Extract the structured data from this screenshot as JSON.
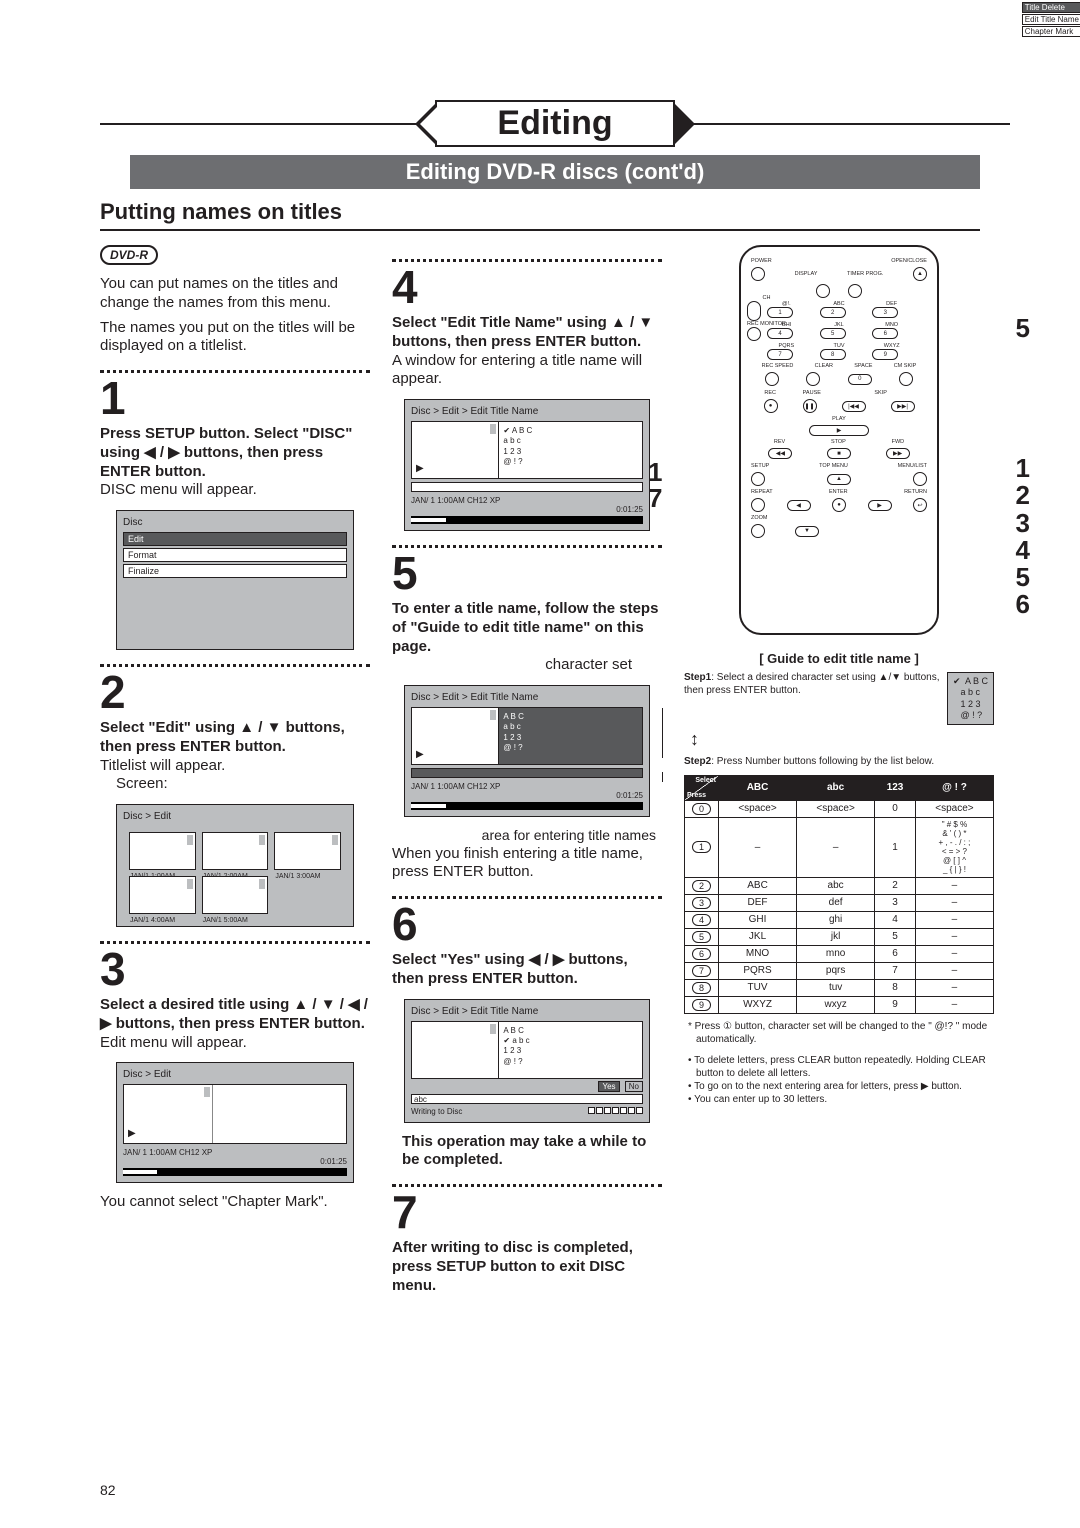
{
  "header": {
    "title": "Editing",
    "subtitle": "Editing DVD-R discs (cont'd)",
    "section": "Putting names on titles"
  },
  "badge": "DVD-R",
  "intro": {
    "p1": "You can put names on the titles and change the names from this menu.",
    "p2": "The names you put on the titles will be displayed on a titlelist."
  },
  "steps": {
    "s1": {
      "num": "1",
      "bold": "Press SETUP button. Select \"DISC\" using ◀ / ▶ buttons, then press ENTER button.",
      "plain": "DISC menu will appear.",
      "osd": {
        "crumb": "Disc",
        "items": [
          "Edit",
          "Format",
          "Finalize"
        ],
        "sel": 0
      }
    },
    "s2": {
      "num": "2",
      "bold": "Select \"Edit\" using ▲ / ▼ buttons, then press ENTER button.",
      "plain": "Titlelist will appear.",
      "screen_label": "Screen:",
      "osd": {
        "crumb": "Disc > Edit",
        "thumbs": [
          "JAN/1  1:00AM",
          "JAN/1  2:00AM",
          "JAN/1  3:00AM",
          "JAN/1  4:00AM",
          "JAN/1  5:00AM"
        ]
      }
    },
    "s3": {
      "num": "3",
      "bold": "Select a desired title using ▲ / ▼ / ◀ / ▶ buttons, then press ENTER button.",
      "plain": "Edit menu will appear.",
      "osd": {
        "crumb": "Disc > Edit",
        "menu": [
          "Title Delete",
          "Edit Title Name",
          "Chapter Mark"
        ],
        "status_l": "JAN/ 1   1:00AM  CH12    XP",
        "status_r": "0:01:25"
      },
      "note": "You cannot select \"Chapter Mark\"."
    },
    "s4": {
      "num": "4",
      "bold": "Select \"Edit Title Name\" using ▲ / ▼ buttons, then press ENTER button.",
      "plain": "A window for entering a title name will appear.",
      "osd": {
        "crumb": "Disc > Edit > Edit Title Name",
        "charsets": [
          "✔  A B C",
          "   a b c",
          "   1 2 3",
          "   @ ! ?"
        ],
        "status_l": "JAN/ 1   1:00AM  CH12   XP",
        "status_r": "0:01:25"
      }
    },
    "s5": {
      "num": "5",
      "bold": "To enter a title name, follow the steps of \"Guide to edit title name\" on this page.",
      "label_charset": "character set",
      "label_area": "area for entering title names",
      "plain": "When you finish entering a title name, press ENTER button.",
      "osd": {
        "crumb": "Disc > Edit > Edit Title Name",
        "charsets": [
          "   A B C",
          "   a b c",
          "   1 2 3",
          "   @ ! ?"
        ],
        "status_l": "JAN/ 1   1:00AM  CH12   XP",
        "status_r": "0:01:25"
      }
    },
    "s6": {
      "num": "6",
      "bold": "Select \"Yes\" using ◀ / ▶ buttons, then press ENTER button.",
      "osd": {
        "crumb": "Disc > Edit > Edit Title Name",
        "charsets": [
          "   A B C",
          "✔  a b c",
          "   1 2 3",
          "   @ ! ?"
        ],
        "yes": "Yes",
        "no": "No",
        "entered": "abc",
        "writing": "Writing to Disc"
      },
      "warn": "This operation may take a while to be completed."
    },
    "s7": {
      "num": "7",
      "bold": "After writing to disc is completed, press SETUP button to exit DISC menu."
    }
  },
  "remote": {
    "top_labels": [
      "POWER",
      "OPEN/CLOSE",
      "DISPLAY",
      "TIMER PROG."
    ],
    "num_labels": [
      "@!.",
      "ABC",
      "DEF",
      "GHI",
      "JKL",
      "MNO",
      "PQRS",
      "TUV",
      "WXYZ"
    ],
    "numbers": [
      "1",
      "2",
      "3",
      "4",
      "5",
      "6",
      "7",
      "8",
      "9"
    ],
    "side_l": [
      "CH",
      "REC MONITOR"
    ],
    "bot_row": [
      "REC SPEED",
      "CLEAR",
      "SPACE",
      "CM SKIP"
    ],
    "zero": "0",
    "rec": "REC",
    "pause": "PAUSE",
    "skip": "SKIP",
    "play": "PLAY",
    "rev": "REV",
    "stop": "STOP",
    "fwd": "FWD",
    "setup": "SETUP",
    "topmenu": "TOP MENU",
    "menulist": "MENU/LIST",
    "repeat": "REPEAT",
    "enter": "ENTER",
    "return": "RETURN",
    "zoom": "ZOOM",
    "ptr_left": [
      "1",
      "7"
    ],
    "ptr_right_top": "5",
    "ptr_right_stack": [
      "1",
      "2",
      "3",
      "4",
      "5",
      "6"
    ]
  },
  "guide": {
    "title": "[ Guide to edit title name ]",
    "step1": {
      "label": "Step1",
      "text": ": Select a desired character set using ▲/▼ buttons, then press ENTER button.",
      "charset": [
        "✔  A B C",
        "   a b c",
        "   1 2 3",
        "   @ ! ?"
      ]
    },
    "step2": {
      "label": "Step2",
      "text": ": Press Number buttons following by the list below."
    },
    "table": {
      "headers": [
        "ABC",
        "abc",
        "123",
        "@ ! ?"
      ],
      "diag_top": "Select",
      "diag_bot": "Press",
      "rows": [
        {
          "k": "0",
          "c": [
            "<space>",
            "<space>",
            "0",
            "<space>"
          ]
        },
        {
          "k": "1",
          "c": [
            "–",
            "–",
            "1",
            "\" # $ %\n& ' ( ) *\n+ , - . / : ;\n< = > ?\n@ [ ] ^\n_ { | } !"
          ]
        },
        {
          "k": "2",
          "c": [
            "ABC",
            "abc",
            "2",
            "–"
          ]
        },
        {
          "k": "3",
          "c": [
            "DEF",
            "def",
            "3",
            "–"
          ]
        },
        {
          "k": "4",
          "c": [
            "GHI",
            "ghi",
            "4",
            "–"
          ]
        },
        {
          "k": "5",
          "c": [
            "JKL",
            "jkl",
            "5",
            "–"
          ]
        },
        {
          "k": "6",
          "c": [
            "MNO",
            "mno",
            "6",
            "–"
          ]
        },
        {
          "k": "7",
          "c": [
            "PQRS",
            "pqrs",
            "7",
            "–"
          ]
        },
        {
          "k": "8",
          "c": [
            "TUV",
            "tuv",
            "8",
            "–"
          ]
        },
        {
          "k": "9",
          "c": [
            "WXYZ",
            "wxyz",
            "9",
            "–"
          ]
        }
      ]
    },
    "star": "* Press ① button, character set will be changed to the \" @!? \" mode automatically.",
    "notes": [
      "To delete letters, press CLEAR button repeatedly. Holding CLEAR button to delete all letters.",
      "To go on to the next entering area for letters, press ▶ button.",
      "You can enter up to 30 letters."
    ]
  },
  "page": "82"
}
